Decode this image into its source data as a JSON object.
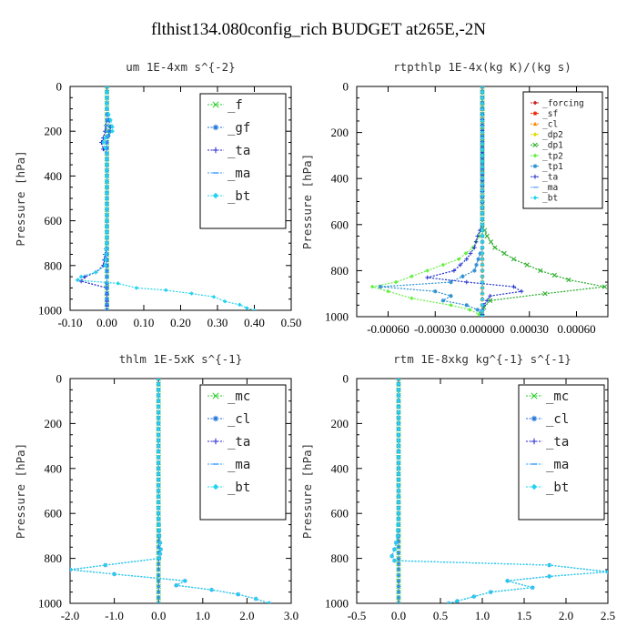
{
  "figure": {
    "title": "flthist134.080config_rich  BUDGET at265E,-2N"
  },
  "chart_data": [
    {
      "type": "line",
      "title": "um  1E-4xm s^{-2}",
      "ylabel": "Pressure [hPa]",
      "xlabel": "",
      "xlim": [
        -0.1,
        0.5
      ],
      "ylim": [
        1000,
        0
      ],
      "xticks": [
        "-0.10",
        "0.00",
        "0.10",
        "0.20",
        "0.30",
        "0.40",
        "0.50"
      ],
      "xtick_values": [
        -0.1,
        0.0,
        0.1,
        0.2,
        0.3,
        0.4,
        0.5
      ],
      "yticks": [
        "0",
        "200",
        "400",
        "600",
        "800",
        "1000"
      ],
      "legend_position": "top-right",
      "series": [
        {
          "name": "_f",
          "color": "#22cc22",
          "marker": "x",
          "p": [
            0,
            100,
            200,
            300,
            400,
            500,
            600,
            700,
            800,
            850,
            880,
            900,
            950,
            1000
          ],
          "values": [
            0,
            0,
            0,
            0,
            0,
            0,
            0,
            0,
            0,
            0,
            0,
            0,
            0,
            0
          ]
        },
        {
          "name": "_gf",
          "color": "#1a6fd9",
          "marker": "asterisk",
          "p": [
            0,
            100,
            150,
            180,
            200,
            220,
            250,
            300,
            400,
            500,
            600,
            700,
            800,
            850,
            880,
            900,
            1000
          ],
          "values": [
            0,
            0,
            0.005,
            0.01,
            0.008,
            0.004,
            0,
            0,
            0,
            0,
            0,
            0,
            0,
            0,
            0,
            0,
            0
          ]
        },
        {
          "name": "_ta",
          "color": "#2222cc",
          "marker": "plus",
          "p": [
            0,
            100,
            150,
            200,
            230,
            250,
            280,
            300,
            400,
            500,
            600,
            700,
            800,
            830,
            850,
            870,
            900,
            930,
            960,
            1000
          ],
          "values": [
            0,
            0,
            0,
            -0.005,
            -0.01,
            -0.015,
            -0.01,
            0,
            0,
            0,
            0,
            0,
            -0.01,
            -0.03,
            -0.06,
            -0.07,
            0,
            0,
            0,
            0
          ]
        },
        {
          "name": "_ma",
          "color": "#3399ff",
          "marker": "dash",
          "p": [
            0,
            100,
            200,
            300,
            400,
            500,
            600,
            700,
            800,
            850,
            880,
            900,
            950,
            1000
          ],
          "values": [
            0,
            0,
            0,
            0,
            0,
            0,
            0,
            0,
            0,
            0,
            0,
            0,
            0,
            0
          ]
        },
        {
          "name": "_bt",
          "color": "#22d3ee",
          "marker": "diamond",
          "p": [
            0,
            100,
            150,
            180,
            200,
            230,
            250,
            300,
            400,
            500,
            600,
            700,
            800,
            830,
            850,
            865,
            880,
            900,
            910,
            925,
            940,
            960,
            975,
            990,
            1000
          ],
          "values": [
            0,
            0,
            0.01,
            0.015,
            0.015,
            -0.005,
            -0.01,
            0,
            0,
            0,
            0,
            0,
            -0.005,
            -0.03,
            -0.07,
            -0.08,
            0.03,
            0.08,
            0.16,
            0.23,
            0.29,
            0.32,
            0.36,
            0.38,
            0.4
          ]
        }
      ]
    },
    {
      "type": "line",
      "title": "rtpthlp  1E-4x(kg K)/(kg s)",
      "ylabel": "Pressure [hPa]",
      "xlabel": "",
      "xlim": [
        -0.0008,
        0.0008
      ],
      "ylim": [
        1000,
        0
      ],
      "xticks": [
        "-0.00060",
        "-0.00030",
        "0.000000",
        "0.00030",
        "0.00060"
      ],
      "xtick_values": [
        -0.0006,
        -0.0003,
        0.0,
        0.0003,
        0.0006
      ],
      "yticks": [
        "0",
        "200",
        "400",
        "600",
        "800",
        "1000"
      ],
      "legend_position": "top-right",
      "series": [
        {
          "name": "_forcing",
          "color": "#cc2222",
          "marker": "diamond",
          "p": [
            0,
            200,
            400,
            600,
            800,
            1000
          ],
          "values": [
            0,
            0,
            0,
            0,
            0,
            0
          ]
        },
        {
          "name": "_sf",
          "color": "#ee2200",
          "marker": "star",
          "p": [
            0,
            200,
            400,
            600,
            800,
            1000
          ],
          "values": [
            0,
            0,
            0,
            0,
            0,
            0
          ]
        },
        {
          "name": "_cl",
          "color": "#ff8800",
          "marker": "triangle",
          "p": [
            0,
            200,
            400,
            600,
            800,
            1000
          ],
          "values": [
            0,
            0,
            0,
            0,
            0,
            0
          ]
        },
        {
          "name": "_dp2",
          "color": "#dddd00",
          "marker": "diamond",
          "p": [
            0,
            200,
            400,
            600,
            800,
            1000
          ],
          "values": [
            0,
            0,
            0,
            0,
            0,
            0
          ]
        },
        {
          "name": "_dp1",
          "color": "#22aa22",
          "marker": "x",
          "p": [
            0,
            600,
            650,
            700,
            750,
            800,
            840,
            870,
            900,
            930,
            960,
            990,
            1000
          ],
          "values": [
            0,
            0,
            3e-05,
            8e-05,
            0.0002,
            0.00037,
            0.00055,
            0.00078,
            0.0004,
            5e-05,
            1e-05,
            -1e-05,
            0
          ]
        },
        {
          "name": "_tp2",
          "color": "#66ee44",
          "marker": "diamond",
          "p": [
            0,
            600,
            650,
            700,
            750,
            800,
            850,
            870,
            890,
            920,
            950,
            970,
            990,
            1000
          ],
          "values": [
            0,
            0,
            -2e-05,
            -6e-05,
            -0.00015,
            -0.00035,
            -0.00055,
            -0.0007,
            -0.0006,
            -0.00045,
            -0.0002,
            -8e-05,
            -2e-05,
            0
          ]
        },
        {
          "name": "_tp1",
          "color": "#2a8fd0",
          "marker": "asterisk",
          "p": [
            0,
            600,
            700,
            800,
            850,
            870,
            890,
            910,
            930,
            950,
            970,
            990,
            1000
          ],
          "values": [
            0,
            0,
            0,
            -5e-05,
            -0.0002,
            -0.00065,
            -0.0003,
            -0.0002,
            -0.00025,
            -0.0001,
            -3e-05,
            0,
            0
          ]
        },
        {
          "name": "_ta",
          "color": "#2233cc",
          "marker": "plus",
          "p": [
            0,
            600,
            650,
            700,
            750,
            800,
            830,
            850,
            870,
            890,
            910,
            930,
            950,
            970,
            990,
            1000
          ],
          "values": [
            0,
            0,
            -3e-05,
            -5e-05,
            -0.0001,
            -0.00018,
            -0.00035,
            -0.0001,
            0.0002,
            0.00025,
            5e-05,
            3e-05,
            1e-05,
            0,
            0,
            0
          ]
        },
        {
          "name": "_ma",
          "color": "#66aaff",
          "marker": "dash",
          "p": [
            0,
            200,
            400,
            600,
            800,
            1000
          ],
          "values": [
            0,
            0,
            0,
            0,
            0,
            0
          ]
        },
        {
          "name": "_bt",
          "color": "#22d3ee",
          "marker": "diamond",
          "p": [
            0,
            200,
            400,
            600,
            800,
            1000
          ],
          "values": [
            0,
            0,
            0,
            0,
            0,
            0
          ]
        }
      ]
    },
    {
      "type": "line",
      "title": "thlm  1E-5xK s^{-1}",
      "ylabel": "Pressure [hPa]",
      "xlabel": "",
      "xlim": [
        -2.0,
        3.0
      ],
      "ylim": [
        1000,
        0
      ],
      "xticks": [
        "-2.0",
        "-1.0",
        "0.0",
        "1.0",
        "2.0",
        "3.0"
      ],
      "xtick_values": [
        -2.0,
        -1.0,
        0.0,
        1.0,
        2.0,
        3.0
      ],
      "yticks": [
        "0",
        "200",
        "400",
        "600",
        "800",
        "1000"
      ],
      "legend_position": "top-right",
      "series": [
        {
          "name": "_mc",
          "color": "#22cc22",
          "marker": "x",
          "p": [
            0,
            100,
            200,
            300,
            400,
            500,
            600,
            700,
            800,
            850,
            900,
            950,
            1000
          ],
          "values": [
            0,
            0,
            0,
            0,
            0,
            0,
            0,
            0,
            0,
            0,
            0,
            0,
            0
          ]
        },
        {
          "name": "_cl",
          "color": "#1a6fd9",
          "marker": "asterisk",
          "p": [
            0,
            200,
            400,
            600,
            700,
            760,
            800,
            830,
            850,
            870,
            900,
            920,
            940,
            960,
            980,
            1000
          ],
          "values": [
            0,
            0,
            0,
            0,
            0.02,
            0.05,
            0.02,
            -1.2,
            -2.0,
            -1.0,
            0.6,
            0.4,
            1.2,
            1.8,
            2.2,
            2.5
          ]
        },
        {
          "name": "_ta",
          "color": "#2222cc",
          "marker": "plus",
          "p": [
            0,
            200,
            400,
            600,
            800,
            1000
          ],
          "values": [
            0,
            0,
            0,
            0,
            0,
            0
          ]
        },
        {
          "name": "_ma",
          "color": "#3399ff",
          "marker": "dash",
          "p": [
            0,
            200,
            400,
            600,
            800,
            1000
          ],
          "values": [
            0,
            0,
            0,
            0,
            0,
            0
          ]
        },
        {
          "name": "_bt",
          "color": "#22d3ee",
          "marker": "diamond",
          "p": [
            0,
            200,
            400,
            600,
            700,
            760,
            800,
            830,
            850,
            870,
            900,
            920,
            940,
            960,
            980,
            1000
          ],
          "values": [
            0,
            0,
            0,
            0,
            0.02,
            0.05,
            0.02,
            -1.2,
            -2.0,
            -1.0,
            0.6,
            0.4,
            1.2,
            1.8,
            2.2,
            2.5
          ]
        }
      ]
    },
    {
      "type": "line",
      "title": "rtm  1E-8xkg kg^{-1} s^{-1}",
      "ylabel": "Pressure [hPa]",
      "xlabel": "",
      "xlim": [
        -0.5,
        2.5
      ],
      "ylim": [
        1000,
        0
      ],
      "xticks": [
        "-0.5",
        "0.0",
        "0.5",
        "1.0",
        "1.5",
        "2.0",
        "2.5"
      ],
      "xtick_values": [
        -0.5,
        0.0,
        0.5,
        1.0,
        1.5,
        2.0,
        2.5
      ],
      "yticks": [
        "0",
        "200",
        "400",
        "600",
        "800",
        "1000"
      ],
      "legend_position": "top-right",
      "series": [
        {
          "name": "_mc",
          "color": "#22cc22",
          "marker": "x",
          "p": [
            0,
            100,
            200,
            300,
            400,
            500,
            600,
            700,
            800,
            850,
            900,
            950,
            1000
          ],
          "values": [
            0,
            0,
            0,
            0,
            0,
            0,
            0,
            0,
            0,
            0,
            0,
            0,
            0
          ]
        },
        {
          "name": "_cl",
          "color": "#1a6fd9",
          "marker": "asterisk",
          "p": [
            0,
            200,
            400,
            600,
            700,
            730,
            760,
            790,
            810,
            830,
            860,
            880,
            900,
            930,
            950,
            970,
            990,
            1000
          ],
          "values": [
            0,
            0,
            0,
            0,
            -0.01,
            -0.03,
            -0.05,
            -0.08,
            -0.05,
            1.8,
            2.5,
            1.8,
            1.3,
            1.6,
            1.1,
            0.9,
            0.7,
            0.6
          ]
        },
        {
          "name": "_ta",
          "color": "#2222cc",
          "marker": "plus",
          "p": [
            0,
            200,
            400,
            600,
            800,
            1000
          ],
          "values": [
            0,
            0,
            0,
            0,
            0,
            0
          ]
        },
        {
          "name": "_ma",
          "color": "#3399ff",
          "marker": "dash",
          "p": [
            0,
            200,
            400,
            600,
            800,
            1000
          ],
          "values": [
            0,
            0,
            0,
            0,
            0,
            0
          ]
        },
        {
          "name": "_bt",
          "color": "#22d3ee",
          "marker": "diamond",
          "p": [
            0,
            200,
            400,
            600,
            700,
            730,
            760,
            790,
            810,
            830,
            860,
            880,
            900,
            930,
            950,
            970,
            990,
            1000
          ],
          "values": [
            0,
            0,
            0,
            0,
            -0.01,
            -0.03,
            -0.05,
            -0.08,
            -0.05,
            1.8,
            2.5,
            1.8,
            1.3,
            1.6,
            1.1,
            0.9,
            0.7,
            0.6
          ]
        }
      ]
    }
  ]
}
